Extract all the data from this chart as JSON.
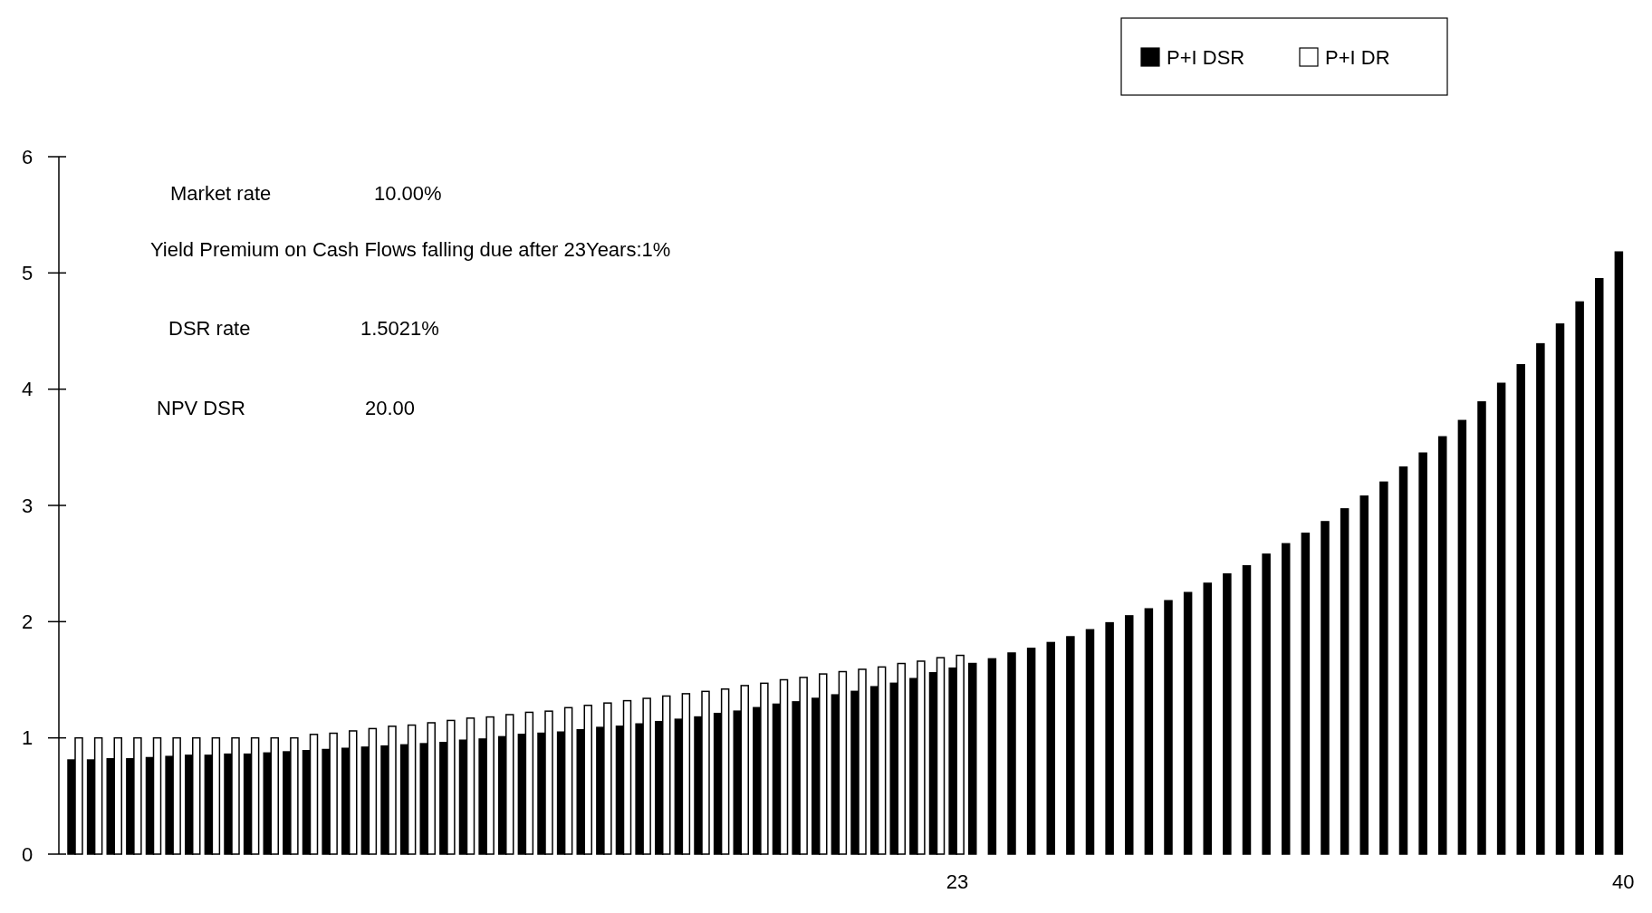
{
  "chart_data": {
    "type": "bar",
    "categories": [
      null,
      null,
      null,
      null,
      null,
      null,
      null,
      null,
      null,
      null,
      null,
      null,
      null,
      null,
      null,
      null,
      null,
      null,
      null,
      null,
      null,
      null,
      null,
      null,
      null,
      null,
      null,
      null,
      null,
      null,
      null,
      null,
      null,
      null,
      null,
      null,
      null,
      null,
      null,
      null,
      null,
      null,
      null,
      null,
      null,
      "23",
      null,
      null,
      null,
      null,
      null,
      null,
      null,
      null,
      null,
      null,
      null,
      null,
      null,
      null,
      null,
      null,
      null,
      null,
      null,
      null,
      null,
      null,
      null,
      null,
      null,
      null,
      null,
      null,
      null,
      null,
      null,
      null,
      null,
      "40"
    ],
    "series": [
      {
        "name": "P+I DSR",
        "color": "#000000",
        "values": [
          0.81,
          0.81,
          0.82,
          0.82,
          0.83,
          0.84,
          0.85,
          0.85,
          0.86,
          0.86,
          0.87,
          0.88,
          0.89,
          0.9,
          0.91,
          0.92,
          0.93,
          0.94,
          0.95,
          0.96,
          0.98,
          0.99,
          1.01,
          1.03,
          1.04,
          1.05,
          1.07,
          1.09,
          1.1,
          1.12,
          1.14,
          1.16,
          1.18,
          1.21,
          1.23,
          1.26,
          1.29,
          1.31,
          1.34,
          1.37,
          1.4,
          1.44,
          1.47,
          1.51,
          1.56,
          1.6,
          1.64,
          1.68,
          1.73,
          1.77,
          1.82,
          1.87,
          1.93,
          1.99,
          2.05,
          2.11,
          2.18,
          2.25,
          2.33,
          2.41,
          2.48,
          2.58,
          2.67,
          2.76,
          2.86,
          2.97,
          3.08,
          3.2,
          3.33,
          3.45,
          3.59,
          3.73,
          3.89,
          4.05,
          4.21,
          4.39,
          4.56,
          4.75,
          4.95,
          5.18
        ]
      },
      {
        "name": "P+I DR",
        "color": "#ffffff",
        "values": [
          1.0,
          1.0,
          1.0,
          1.0,
          1.0,
          1.0,
          1.0,
          1.0,
          1.0,
          1.0,
          1.0,
          1.0,
          1.03,
          1.04,
          1.06,
          1.08,
          1.1,
          1.11,
          1.13,
          1.15,
          1.17,
          1.18,
          1.2,
          1.22,
          1.23,
          1.26,
          1.28,
          1.3,
          1.32,
          1.34,
          1.36,
          1.38,
          1.4,
          1.42,
          1.45,
          1.47,
          1.5,
          1.52,
          1.55,
          1.57,
          1.59,
          1.61,
          1.64,
          1.66,
          1.69,
          1.71,
          null,
          null,
          null,
          null,
          null,
          null,
          null,
          null,
          null,
          null,
          null,
          null,
          null,
          null,
          null,
          null,
          null,
          null,
          null,
          null,
          null,
          null,
          null,
          null,
          null,
          null,
          null,
          null,
          null,
          null,
          null,
          null,
          null,
          null
        ]
      }
    ],
    "ylim": [
      0,
      6
    ],
    "yticks": [
      0,
      1,
      2,
      3,
      4,
      5,
      6
    ],
    "grid": false,
    "legend": "top right",
    "annotations": [
      "Market rate",
      "10.00%",
      "Yield Premium on Cash Flows falling due after 23Years:1%",
      "DSR rate",
      "1.5021%",
      "NPV DSR",
      "20.00"
    ]
  }
}
